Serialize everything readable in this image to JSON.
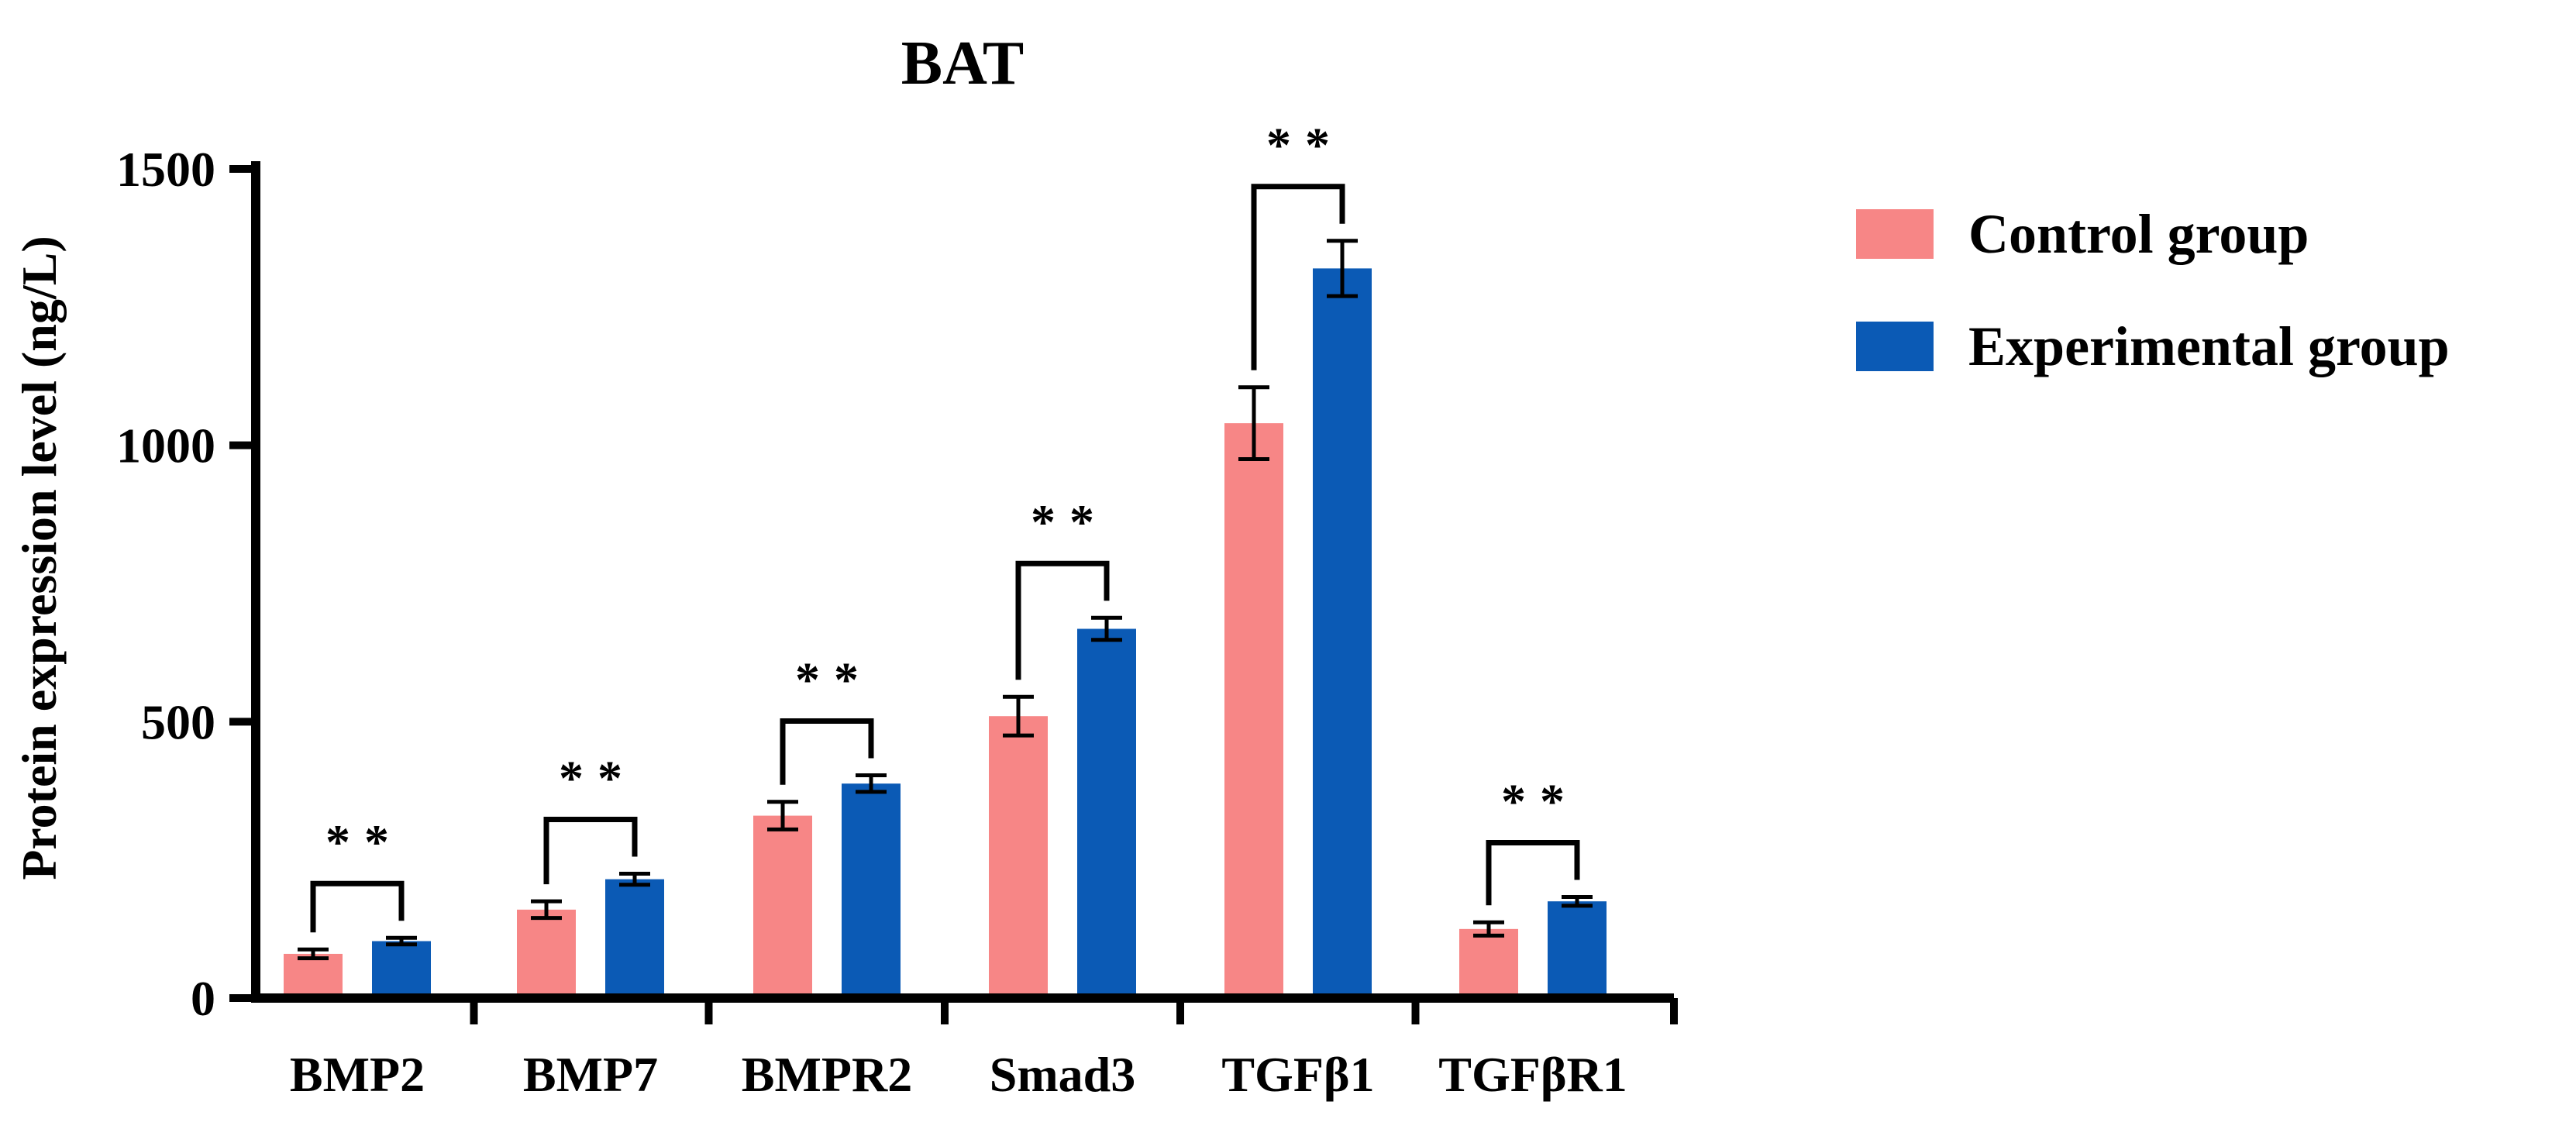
{
  "chart_data": {
    "type": "bar",
    "title": "BAT",
    "xlabel": "",
    "ylabel": "Protein expression level (ng/L)",
    "ylim": [
      0,
      1500
    ],
    "yticks": [
      0,
      500,
      1000,
      1500
    ],
    "ytick_labels": [
      "0",
      "500",
      "1000",
      "1500"
    ],
    "categories": [
      "BMP2",
      "BMP7",
      "BMPR2",
      "Smad3",
      "TGFβ1",
      "TGFβR1"
    ],
    "series": [
      {
        "name": "Control group",
        "color": "#F78686",
        "values": [
          80,
          160,
          330,
          510,
          1040,
          125
        ],
        "errors": [
          8,
          15,
          25,
          35,
          65,
          12
        ]
      },
      {
        "name": "Experimental group",
        "color": "#0B5AB5",
        "values": [
          103,
          215,
          388,
          668,
          1320,
          175
        ],
        "errors": [
          6,
          10,
          15,
          20,
          50,
          8
        ]
      }
    ],
    "significance": [
      "**",
      "**",
      "**",
      "**",
      "**",
      "**"
    ],
    "legend_position": "top-right",
    "grid": false
  }
}
